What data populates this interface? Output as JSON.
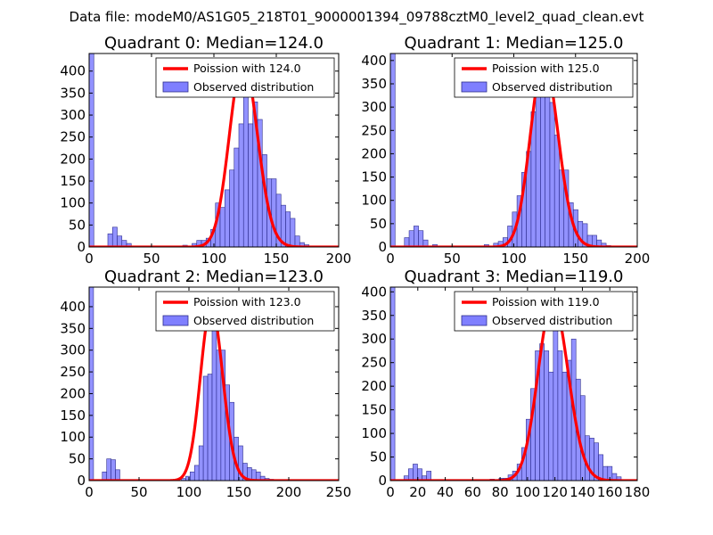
{
  "figure_title": "Data file: modeM0/AS1G05_218T01_9000001394_09788cztM0_level2_quad_clean.evt",
  "colors": {
    "bars": "#7f7fff",
    "bar_edge": "#2d2d8c",
    "poisson": "#ff0000",
    "axis": "#000000",
    "legend_edge": "#000000"
  },
  "chart_data": [
    {
      "type": "bar",
      "title": "Quadrant 0: Median=124.0",
      "median": 124.0,
      "xlim": [
        0,
        200
      ],
      "ylim": [
        0,
        440
      ],
      "xticks": [
        0,
        50,
        100,
        150,
        200
      ],
      "yticks": [
        0,
        50,
        100,
        150,
        200,
        250,
        300,
        350,
        400
      ],
      "legend": [
        "Poission with 124.0",
        "Observed distribution"
      ],
      "bin_width": 3.75,
      "bars": [
        [
          0,
          440
        ],
        [
          15,
          30
        ],
        [
          18.75,
          45
        ],
        [
          22.5,
          25
        ],
        [
          26.25,
          15
        ],
        [
          30,
          8
        ],
        [
          75,
          4
        ],
        [
          82.5,
          8
        ],
        [
          86.25,
          15
        ],
        [
          90,
          15
        ],
        [
          93.75,
          20
        ],
        [
          97.5,
          40
        ],
        [
          101.25,
          100
        ],
        [
          105,
          90
        ],
        [
          108.75,
          130
        ],
        [
          112.5,
          175
        ],
        [
          116.25,
          225
        ],
        [
          120,
          280
        ],
        [
          123.75,
          425
        ],
        [
          127.5,
          280
        ],
        [
          131.25,
          330
        ],
        [
          135,
          290
        ],
        [
          138.75,
          210
        ],
        [
          142.5,
          155
        ],
        [
          146.25,
          155
        ],
        [
          150,
          120
        ],
        [
          153.75,
          95
        ],
        [
          157.5,
          80
        ],
        [
          161.25,
          65
        ],
        [
          165,
          25
        ],
        [
          168.75,
          10
        ],
        [
          172.5,
          5
        ],
        [
          176.25,
          2
        ]
      ]
    },
    {
      "type": "bar",
      "title": "Quadrant 1: Median=125.0",
      "median": 125.0,
      "xlim": [
        0,
        200
      ],
      "ylim": [
        0,
        415
      ],
      "xticks": [
        0,
        50,
        100,
        150,
        200
      ],
      "yticks": [
        0,
        50,
        100,
        150,
        200,
        250,
        300,
        350,
        400
      ],
      "legend": [
        "Poission with 125.0",
        "Observed distribution"
      ],
      "bin_width": 3.8,
      "bars": [
        [
          0,
          415
        ],
        [
          11.4,
          20
        ],
        [
          15.2,
          35
        ],
        [
          19,
          45
        ],
        [
          22.8,
          35
        ],
        [
          26.6,
          15
        ],
        [
          34.2,
          5
        ],
        [
          76,
          5
        ],
        [
          83.6,
          8
        ],
        [
          87.4,
          12
        ],
        [
          91.2,
          20
        ],
        [
          95,
          45
        ],
        [
          98.8,
          75
        ],
        [
          102.6,
          110
        ],
        [
          106.4,
          160
        ],
        [
          110.2,
          205
        ],
        [
          114,
          290
        ],
        [
          117.8,
          340
        ],
        [
          121.6,
          400
        ],
        [
          125.4,
          345
        ],
        [
          129.2,
          310
        ],
        [
          133,
          240
        ],
        [
          136.8,
          165
        ],
        [
          140.6,
          165
        ],
        [
          144.4,
          95
        ],
        [
          148.2,
          80
        ],
        [
          152,
          55
        ],
        [
          155.8,
          50
        ],
        [
          159.6,
          25
        ],
        [
          163.4,
          25
        ],
        [
          167.2,
          15
        ],
        [
          171,
          8
        ],
        [
          174.8,
          3
        ],
        [
          178.6,
          2
        ]
      ]
    },
    {
      "type": "bar",
      "title": "Quadrant 2: Median=123.0",
      "median": 123.0,
      "xlim": [
        0,
        250
      ],
      "ylim": [
        0,
        445
      ],
      "xticks": [
        0,
        50,
        100,
        150,
        200,
        250
      ],
      "yticks": [
        0,
        50,
        100,
        150,
        200,
        250,
        300,
        350,
        400
      ],
      "legend": [
        "Poission with 123.0",
        "Observed distribution"
      ],
      "bin_width": 4.4,
      "bars": [
        [
          0,
          445
        ],
        [
          13.2,
          20
        ],
        [
          17.6,
          50
        ],
        [
          22,
          48
        ],
        [
          26.4,
          25
        ],
        [
          92.4,
          5
        ],
        [
          96.8,
          10
        ],
        [
          101.2,
          20
        ],
        [
          105.6,
          35
        ],
        [
          110,
          80
        ],
        [
          114.4,
          240
        ],
        [
          118.8,
          245
        ],
        [
          123.2,
          400
        ],
        [
          127.6,
          300
        ],
        [
          132,
          300
        ],
        [
          136.4,
          220
        ],
        [
          140.8,
          180
        ],
        [
          145.2,
          100
        ],
        [
          149.6,
          80
        ],
        [
          154,
          40
        ],
        [
          158.4,
          30
        ],
        [
          162.8,
          25
        ],
        [
          167.2,
          20
        ],
        [
          171.6,
          10
        ],
        [
          176,
          5
        ],
        [
          180.4,
          3
        ]
      ]
    },
    {
      "type": "bar",
      "title": "Quadrant 3: Median=119.0",
      "median": 119.0,
      "xlim": [
        0,
        180
      ],
      "ylim": [
        0,
        410
      ],
      "xticks": [
        0,
        20,
        40,
        60,
        80,
        100,
        120,
        140,
        160,
        180
      ],
      "yticks": [
        0,
        50,
        100,
        150,
        200,
        250,
        300,
        350,
        400
      ],
      "legend": [
        "Poission with 119.0",
        "Observed distribution"
      ],
      "bin_width": 3.3,
      "bars": [
        [
          0,
          410
        ],
        [
          9.9,
          10
        ],
        [
          13.2,
          25
        ],
        [
          16.5,
          35
        ],
        [
          19.8,
          25
        ],
        [
          23.1,
          10
        ],
        [
          26.4,
          20
        ],
        [
          72.6,
          3
        ],
        [
          79.2,
          5
        ],
        [
          82.5,
          5
        ],
        [
          85.8,
          12
        ],
        [
          89.1,
          20
        ],
        [
          92.4,
          35
        ],
        [
          95.7,
          70
        ],
        [
          99,
          130
        ],
        [
          102.3,
          195
        ],
        [
          105.6,
          275
        ],
        [
          108.9,
          290
        ],
        [
          112.2,
          275
        ],
        [
          115.5,
          230
        ],
        [
          118.8,
          380
        ],
        [
          122.1,
          275
        ],
        [
          125.4,
          230
        ],
        [
          128.7,
          255
        ],
        [
          132,
          300
        ],
        [
          135.3,
          215
        ],
        [
          138.6,
          180
        ],
        [
          141.9,
          95
        ],
        [
          145.2,
          90
        ],
        [
          148.5,
          80
        ],
        [
          151.8,
          55
        ],
        [
          155.1,
          30
        ],
        [
          158.4,
          30
        ],
        [
          161.7,
          15
        ],
        [
          165,
          8
        ]
      ]
    }
  ]
}
